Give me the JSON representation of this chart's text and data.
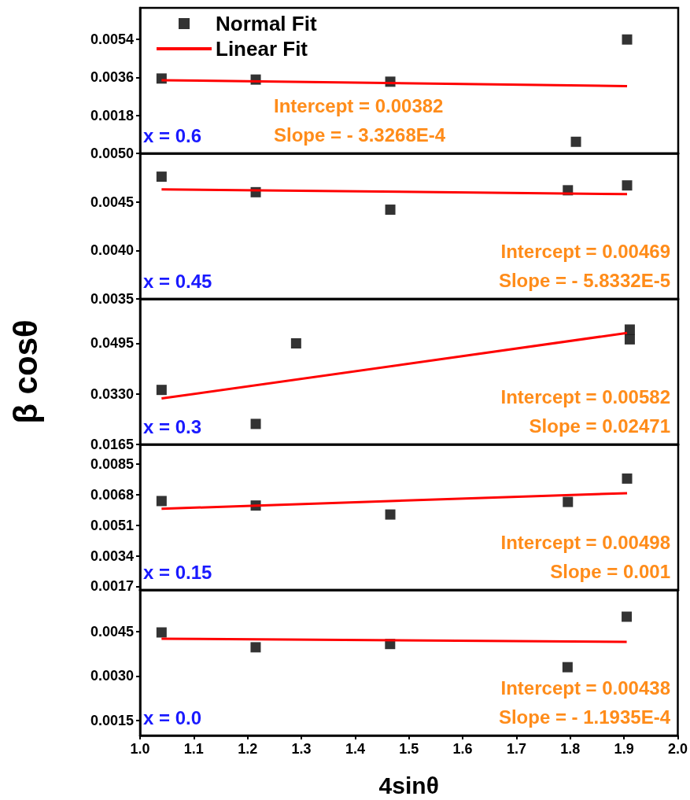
{
  "chart_data": [
    {
      "type": "scatter",
      "legend": "top left",
      "tick_labels": "y",
      "annotations": [
        "x = 0.6",
        "Intercept = 0.00382",
        "Slope = - 3.3268E-4"
      ],
      "xlim": [
        1,
        2
      ],
      "ylim": [
        0,
        0.0069
      ],
      "yticks": [
        0.0018,
        0.0036,
        0.0054
      ],
      "series": [
        {
          "name": "Normal Fit",
          "type": "scatter",
          "marker": "square",
          "color": "#000000",
          "x": [
            1.04,
            1.215,
            1.465,
            1.81,
            1.905
          ],
          "values": [
            0.00355,
            0.0035,
            0.0034,
            0.00055,
            0.0054
          ]
        },
        {
          "name": "Linear Fit",
          "type": "line",
          "marker": "none",
          "color": "#ff0000",
          "x": [
            1.04,
            1.905
          ],
          "values": [
            0.00347,
            0.00319
          ]
        }
      ]
    },
    {
      "type": "scatter",
      "tick_labels": "y",
      "annotations": [
        "x = 0.45",
        "Intercept = 0.00469",
        "Slope = - 5.8332E-5"
      ],
      "xlim": [
        1,
        2
      ],
      "ylim": [
        0.0035,
        0.005
      ],
      "yticks": [
        0.0035,
        {
          "value": 0.004,
          "label": "0.0040"
        },
        0.0045,
        {
          "value": 0.005,
          "label": "0.0050"
        }
      ],
      "series": [
        {
          "type": "scatter",
          "marker": "square",
          "color": "#000000",
          "x": [
            1.04,
            1.215,
            1.465,
            1.795,
            1.905
          ],
          "values": [
            0.00476,
            0.0046,
            0.00442,
            0.00462,
            0.00467
          ]
        },
        {
          "type": "line",
          "marker": "none",
          "color": "#ff0000",
          "x": [
            1.04,
            1.905
          ],
          "values": [
            0.00463,
            0.00458
          ]
        }
      ]
    },
    {
      "type": "scatter",
      "tick_labels": "y",
      "ylabel": "β cosθ",
      "annotations": [
        "x = 0.3",
        "Intercept = 0.00582",
        "Slope = 0.02471"
      ],
      "xlim": [
        1,
        2
      ],
      "ylim": [
        0.0165,
        0.064
      ],
      "yticks": [
        0.0165,
        {
          "value": 0.033,
          "label": "0.0330"
        },
        0.0495
      ],
      "series": [
        {
          "type": "scatter",
          "marker": "square",
          "color": "#000000",
          "x": [
            1.04,
            1.215,
            1.29,
            1.91,
            1.91
          ],
          "values": [
            0.0343,
            0.0232,
            0.0495,
            0.054,
            0.0508
          ]
        },
        {
          "type": "line",
          "marker": "none",
          "color": "#ff0000",
          "x": [
            1.04,
            1.905
          ],
          "values": [
            0.0315,
            0.0529
          ]
        }
      ]
    },
    {
      "type": "scatter",
      "tick_labels": "y",
      "annotations": [
        "x = 0.15",
        "Intercept = 0.00498",
        "Slope = 0.001"
      ],
      "xlim": [
        1,
        2
      ],
      "ylim": [
        0.0015,
        0.0096
      ],
      "yticks": [
        0.0017,
        0.0034,
        0.0051,
        0.0068,
        0.0085
      ],
      "series": [
        {
          "type": "scatter",
          "marker": "square",
          "color": "#000000",
          "x": [
            1.04,
            1.215,
            1.465,
            1.795,
            1.905
          ],
          "values": [
            0.00645,
            0.0062,
            0.0057,
            0.0064,
            0.0077
          ]
        },
        {
          "type": "line",
          "marker": "none",
          "color": "#ff0000",
          "x": [
            1.04,
            1.905
          ],
          "values": [
            0.00602,
            0.00689
          ]
        }
      ]
    },
    {
      "type": "scatter",
      "xlabel": "4sinθ",
      "annotations": [
        "x = 0.0",
        "Intercept = 0.00438",
        "Slope = - 1.1935E-4"
      ],
      "xlim": [
        1,
        2
      ],
      "xticks": [
        {
          "value": 1,
          "label": "1.0"
        },
        1.1,
        1.2,
        1.3,
        1.4,
        1.5,
        1.6,
        1.7,
        1.8,
        1.9,
        {
          "value": 2,
          "label": "2.0"
        }
      ],
      "ylim": [
        0.001,
        0.0059
      ],
      "yticks": [
        0.0015,
        {
          "value": 0.003,
          "label": "0.0030"
        },
        0.0045
      ],
      "series": [
        {
          "type": "scatter",
          "marker": "square",
          "color": "#000000",
          "x": [
            1.04,
            1.215,
            1.465,
            1.795,
            1.905
          ],
          "values": [
            0.00447,
            0.00397,
            0.00408,
            0.0033,
            0.005
          ]
        },
        {
          "type": "line",
          "marker": "none",
          "color": "#ff0000",
          "x": [
            1.04,
            1.905
          ],
          "values": [
            0.00426,
            0.00415
          ]
        }
      ]
    }
  ]
}
